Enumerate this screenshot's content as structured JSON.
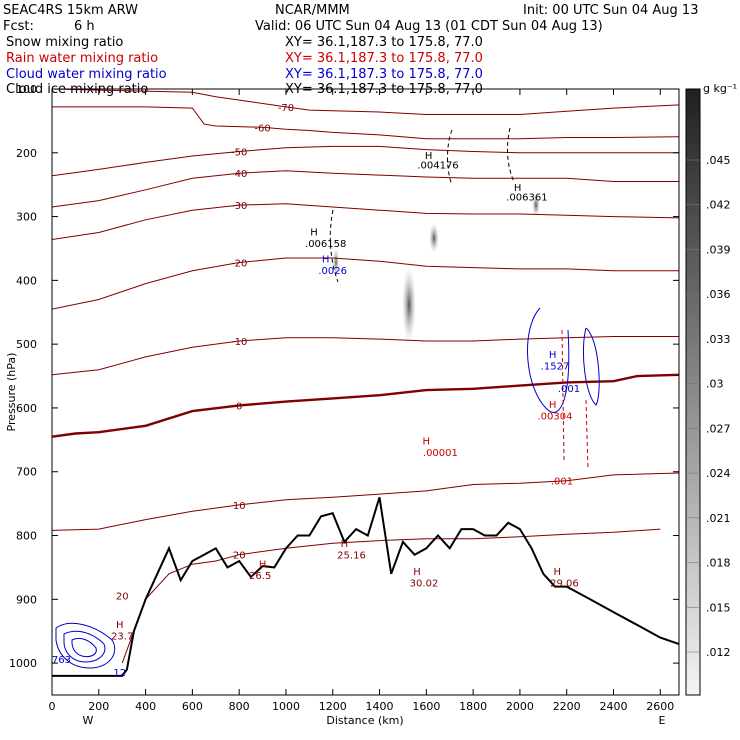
{
  "header": {
    "model": "SEAC4RS 15km ARW",
    "center": "NCAR/MMM",
    "init": "Init: 00 UTC Sun 04 Aug 13",
    "fcst_label": "Fcst:",
    "fcst_value": "6 h",
    "valid": "Valid: 06 UTC Sun 04 Aug 13 (01 CDT Sun 04 Aug 13)"
  },
  "fields": [
    {
      "name": "Snow mixing ratio",
      "xy": "XY=  36.1,187.3 to 175.8, 77.0",
      "color": "#000000"
    },
    {
      "name": "Rain water mixing ratio",
      "xy": "XY=  36.1,187.3 to 175.8, 77.0",
      "color": "#cc0000"
    },
    {
      "name": "Cloud water mixing ratio",
      "xy": "XY=  36.1,187.3 to 175.8, 77.0",
      "color": "#0000cc"
    },
    {
      "name": "Cloud ice mixing ratio",
      "xy": "XY=  36.1,187.3 to 175.8, 77.0",
      "color": "#000000"
    }
  ],
  "colorbar": {
    "unit": "g kg⁻¹",
    "labels": [
      ".045",
      ".042",
      ".039",
      ".036",
      ".033",
      ".03",
      ".027",
      ".024",
      ".021",
      ".018",
      ".015",
      ".012"
    ]
  },
  "chart_data": {
    "type": "line",
    "xlabel": "Distance (km)",
    "ylabel": "Pressure (hPa)",
    "xlim": [
      0,
      2680
    ],
    "ylim": [
      1050,
      100
    ],
    "x_ticks": [
      0,
      200,
      400,
      600,
      800,
      1000,
      1200,
      1400,
      1600,
      1800,
      2000,
      2200,
      2400,
      2600
    ],
    "y_ticks": [
      200,
      300,
      400,
      500,
      600,
      700,
      800,
      900,
      1000
    ],
    "y_tick_labels": [
      "200",
      "300",
      "400",
      "500",
      "600",
      "700",
      "800",
      "900",
      "1000"
    ],
    "y_top_label": "100",
    "endpoints": {
      "left": "W",
      "right": "E"
    },
    "temperature_contours": [
      {
        "label": "-70",
        "level": -70,
        "x": [
          0,
          600,
          700,
          850,
          1000,
          1100,
          1400,
          1600,
          1800,
          2000,
          2200,
          2400,
          2680
        ],
        "y": [
          100,
          105,
          112,
          120,
          128,
          133,
          136,
          140,
          140,
          140,
          135,
          130,
          125
        ]
      },
      {
        "label": "-60",
        "level": -60,
        "x": [
          0,
          400,
          600,
          650,
          700,
          900,
          1000,
          1100,
          1200,
          1400,
          1600,
          1800,
          2000,
          2200,
          2400,
          2680
        ],
        "y": [
          128,
          128,
          130,
          155,
          158,
          160,
          163,
          165,
          168,
          172,
          178,
          178,
          178,
          176,
          176,
          175
        ]
      },
      {
        "label": "-50",
        "level": -50,
        "x": [
          0,
          200,
          400,
          600,
          800,
          1000,
          1200,
          1400,
          1600,
          1800,
          2000,
          2200,
          2400,
          2680
        ],
        "y": [
          236,
          226,
          215,
          205,
          198,
          192,
          190,
          190,
          195,
          198,
          200,
          200,
          200,
          200
        ]
      },
      {
        "label": "-40",
        "level": -40,
        "x": [
          0,
          200,
          400,
          600,
          800,
          1000,
          1200,
          1400,
          1600,
          1800,
          2000,
          2200,
          2400,
          2680
        ],
        "y": [
          285,
          275,
          258,
          240,
          232,
          228,
          232,
          235,
          238,
          240,
          240,
          240,
          245,
          245
        ]
      },
      {
        "label": "-30",
        "level": -30,
        "x": [
          0,
          200,
          400,
          600,
          800,
          1000,
          1200,
          1400,
          1600,
          1800,
          2000,
          2200,
          2400,
          2680
        ],
        "y": [
          336,
          325,
          305,
          290,
          282,
          280,
          285,
          290,
          295,
          296,
          296,
          298,
          300,
          302
        ]
      },
      {
        "label": "-20",
        "level": -20,
        "x": [
          0,
          200,
          400,
          600,
          800,
          1000,
          1200,
          1400,
          1600,
          1800,
          2000,
          2200,
          2400,
          2680
        ],
        "y": [
          445,
          430,
          405,
          385,
          372,
          365,
          365,
          370,
          378,
          380,
          382,
          382,
          385,
          385
        ]
      },
      {
        "label": "-10",
        "level": -10,
        "x": [
          0,
          200,
          400,
          600,
          800,
          1000,
          1200,
          1400,
          1600,
          1800,
          2000,
          2200,
          2400,
          2680
        ],
        "y": [
          548,
          540,
          520,
          505,
          495,
          490,
          490,
          492,
          495,
          495,
          492,
          490,
          488,
          488
        ]
      },
      {
        "label": "0",
        "level": 0,
        "x": [
          0,
          100,
          200,
          400,
          600,
          800,
          1000,
          1200,
          1400,
          1600,
          1800,
          2000,
          2200,
          2400,
          2500,
          2680
        ],
        "y": [
          645,
          640,
          638,
          628,
          605,
          596,
          590,
          585,
          580,
          572,
          570,
          565,
          560,
          558,
          550,
          548
        ]
      },
      {
        "label": "10",
        "level": 10,
        "x": [
          0,
          200,
          400,
          600,
          800,
          1000,
          1200,
          1400,
          1600,
          1800,
          2000,
          2200,
          2400,
          2680
        ],
        "y": [
          792,
          790,
          775,
          762,
          752,
          744,
          740,
          735,
          730,
          720,
          718,
          714,
          705,
          702
        ]
      },
      {
        "label": "20",
        "level": 20,
        "x": [
          300,
          400,
          500,
          600,
          700,
          800,
          1000,
          1200,
          1400,
          1600,
          1800,
          2000,
          2100,
          2200,
          2400,
          2600
        ],
        "y": [
          1000,
          900,
          860,
          845,
          840,
          830,
          820,
          812,
          808,
          805,
          805,
          802,
          800,
          798,
          795,
          790
        ]
      }
    ],
    "terrain": {
      "x": [
        0,
        300,
        320,
        350,
        400,
        450,
        500,
        550,
        600,
        650,
        700,
        750,
        800,
        850,
        900,
        950,
        1000,
        1050,
        1100,
        1150,
        1200,
        1250,
        1300,
        1350,
        1400,
        1450,
        1500,
        1550,
        1600,
        1650,
        1700,
        1750,
        1800,
        1850,
        1900,
        1950,
        2000,
        2050,
        2100,
        2150,
        2200,
        2300,
        2400,
        2500,
        2600,
        2680
      ],
      "y": [
        1020,
        1020,
        1010,
        950,
        900,
        860,
        820,
        870,
        840,
        830,
        820,
        850,
        840,
        865,
        848,
        850,
        820,
        800,
        800,
        770,
        765,
        810,
        790,
        800,
        740,
        860,
        810,
        830,
        820,
        800,
        820,
        790,
        790,
        800,
        800,
        780,
        790,
        820,
        860,
        880,
        880,
        900,
        920,
        940,
        960,
        970
      ]
    },
    "annotations": [
      {
        "text": "H",
        "x": 1610,
        "y": 210,
        "color": "#000000"
      },
      {
        "text": ".004176",
        "x": 1650,
        "y": 225,
        "color": "#000000"
      },
      {
        "text": "H",
        "x": 1990,
        "y": 260,
        "color": "#000000"
      },
      {
        "text": ".006361",
        "x": 2030,
        "y": 275,
        "color": "#000000"
      },
      {
        "text": "H",
        "x": 1120,
        "y": 330,
        "color": "#000000"
      },
      {
        "text": ".006158",
        "x": 1170,
        "y": 348,
        "color": "#000000"
      },
      {
        "text": "H",
        "x": 1170,
        "y": 372,
        "color": "#0000cc"
      },
      {
        "text": ".0026",
        "x": 1200,
        "y": 390,
        "color": "#0000cc"
      },
      {
        "text": "H",
        "x": 2140,
        "y": 522,
        "color": "#0000cc"
      },
      {
        "text": ".1527",
        "x": 2150,
        "y": 540,
        "color": "#0000cc"
      },
      {
        "text": ".001",
        "x": 2210,
        "y": 575,
        "color": "#0000cc"
      },
      {
        "text": "H",
        "x": 2140,
        "y": 600,
        "color": "#cc0000"
      },
      {
        "text": ".00304",
        "x": 2150,
        "y": 618,
        "color": "#cc0000"
      },
      {
        "text": "H",
        "x": 1600,
        "y": 657,
        "color": "#cc0000"
      },
      {
        "text": ".00001",
        "x": 1660,
        "y": 675,
        "color": "#cc0000"
      },
      {
        "text": ".001",
        "x": 2180,
        "y": 720,
        "color": "#cc0000"
      },
      {
        "text": "H",
        "x": 900,
        "y": 850,
        "color": "#cc0000"
      },
      {
        "text": "26.5",
        "x": 890,
        "y": 868,
        "color": "#800000"
      },
      {
        "text": "H",
        "x": 1250,
        "y": 818,
        "color": "#800000"
      },
      {
        "text": "25.16",
        "x": 1280,
        "y": 836,
        "color": "#800000"
      },
      {
        "text": "H",
        "x": 1560,
        "y": 862,
        "color": "#800000"
      },
      {
        "text": "30.02",
        "x": 1590,
        "y": 880,
        "color": "#800000"
      },
      {
        "text": "H",
        "x": 2160,
        "y": 862,
        "color": "#800000"
      },
      {
        "text": "29.06",
        "x": 2190,
        "y": 880,
        "color": "#800000"
      },
      {
        "text": "H",
        "x": 290,
        "y": 945,
        "color": "#800000"
      },
      {
        "text": "23.7",
        "x": 300,
        "y": 963,
        "color": "#800000"
      },
      {
        "text": "20",
        "x": 300,
        "y": 900,
        "color": "#800000"
      },
      {
        "text": "763",
        "x": 40,
        "y": 1000,
        "color": "#0000cc"
      },
      {
        "text": "12",
        "x": 290,
        "y": 1020,
        "color": "#0000cc"
      }
    ]
  }
}
